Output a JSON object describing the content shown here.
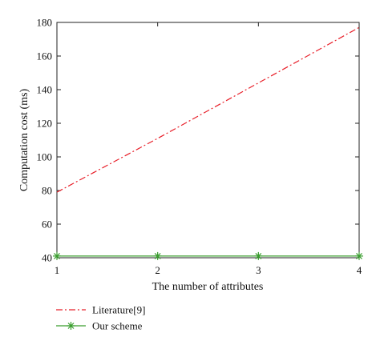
{
  "chart_data": {
    "type": "line",
    "title": "",
    "xlabel": "The number of attributes",
    "ylabel": "Computation cost (ms)",
    "x": [
      1,
      2,
      3,
      4
    ],
    "xlim": [
      1,
      4
    ],
    "ylim": [
      40,
      180
    ],
    "xticks": [
      "1",
      "2",
      "3",
      "4"
    ],
    "yticks": [
      "40",
      "60",
      "80",
      "100",
      "120",
      "140",
      "160",
      "180"
    ],
    "grid": false,
    "legend_position": "bottom-left",
    "series": [
      {
        "name": "Literature[9]",
        "values": [
          79,
          111,
          144,
          177
        ],
        "color": "#e8202a",
        "style": "dash-dot",
        "marker": "none"
      },
      {
        "name": "Our scheme",
        "values": [
          41,
          41,
          41,
          41
        ],
        "color": "#3a9e2f",
        "style": "solid",
        "marker": "asterisk"
      }
    ]
  }
}
